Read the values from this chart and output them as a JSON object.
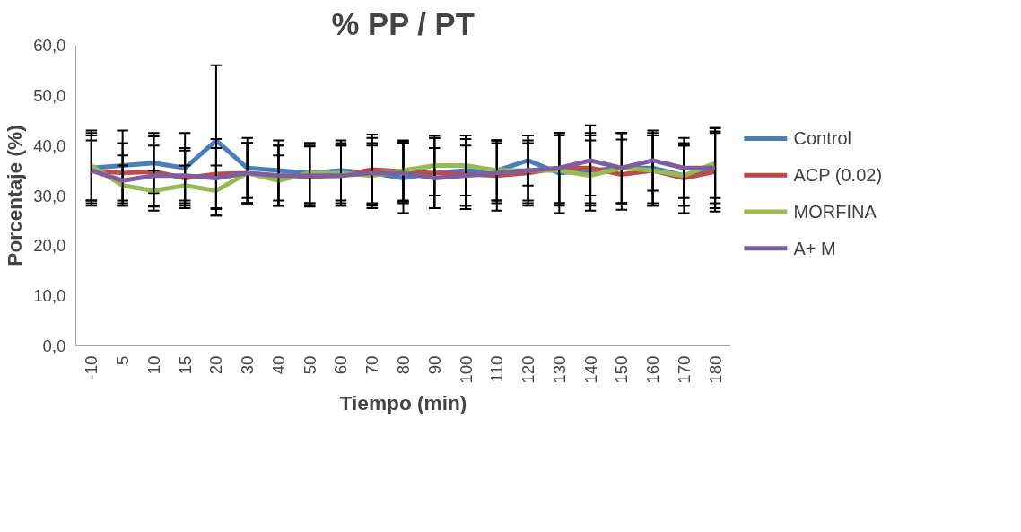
{
  "chart_data": {
    "type": "line",
    "title": "% PP / PT",
    "xlabel": "Tiempo (min)",
    "ylabel": "Porcentaje (%)",
    "categories": [
      "-10",
      "5",
      "10",
      "15",
      "20",
      "30",
      "40",
      "50",
      "60",
      "70",
      "80",
      "90",
      "100",
      "110",
      "120",
      "130",
      "140",
      "150",
      "160",
      "170",
      "180"
    ],
    "series": [
      {
        "name": "Control",
        "color": "#4a7ebb",
        "values": [
          35.5,
          36,
          36.5,
          35.5,
          41,
          35.5,
          35,
          34.5,
          35,
          34.5,
          33.5,
          34.5,
          35,
          35,
          37,
          34.5,
          35,
          35.5,
          35.5,
          34,
          35.5
        ],
        "errors": [
          7,
          7,
          6,
          7,
          15,
          6,
          6,
          6,
          6,
          7,
          7,
          7,
          7,
          6,
          5,
          8,
          7,
          7,
          7,
          6,
          8
        ]
      },
      {
        "name": "ACP (0.02)",
        "color": "#be4b48",
        "values": [
          35,
          34.5,
          34.8,
          33.5,
          34.3,
          34.5,
          34,
          33.8,
          34,
          35.2,
          34.8,
          34.5,
          34.3,
          34,
          34.5,
          35.5,
          35.5,
          34.2,
          35,
          33.5,
          34.8
        ],
        "errors": [
          7,
          6,
          7,
          6,
          7,
          6,
          6,
          6,
          6,
          7,
          6,
          7,
          7,
          7,
          6,
          7,
          7,
          7,
          7,
          7,
          8
        ]
      },
      {
        "name": "MORFINA",
        "color": "#98b954",
        "values": [
          36,
          32,
          31,
          32,
          31,
          34.5,
          33,
          34.5,
          34.5,
          34,
          35,
          36,
          36,
          35,
          35,
          35,
          34,
          35.5,
          35,
          34,
          36.5
        ],
        "errors": [
          7,
          4,
          4,
          4,
          5,
          6,
          5,
          6,
          6,
          6,
          6,
          6,
          6,
          6,
          6,
          7,
          7,
          7,
          7,
          6,
          7
        ]
      },
      {
        "name": "A+ M",
        "color": "#7d5fa0",
        "values": [
          35,
          33,
          34,
          34,
          33.5,
          34.5,
          34,
          34,
          34,
          34.5,
          34.5,
          33.5,
          34,
          34.5,
          35,
          35.5,
          37,
          35.5,
          37,
          35.5,
          35.5
        ],
        "errors": [
          6,
          5,
          6,
          5,
          6,
          6,
          6,
          6,
          6,
          6,
          6,
          6,
          6,
          6,
          7,
          7,
          7,
          7,
          6,
          6,
          7
        ]
      }
    ],
    "ylim": [
      0,
      60
    ],
    "yticks": [
      {
        "value": 0,
        "label": "0,0"
      },
      {
        "value": 10,
        "label": "10,0"
      },
      {
        "value": 20,
        "label": "20,0"
      },
      {
        "value": 30,
        "label": "30,0"
      },
      {
        "value": 40,
        "label": "40,0"
      },
      {
        "value": 50,
        "label": "50,0"
      },
      {
        "value": 60,
        "label": "60,0"
      }
    ],
    "grid": false,
    "legend": "right",
    "marker": "none",
    "line_style": "solid"
  }
}
